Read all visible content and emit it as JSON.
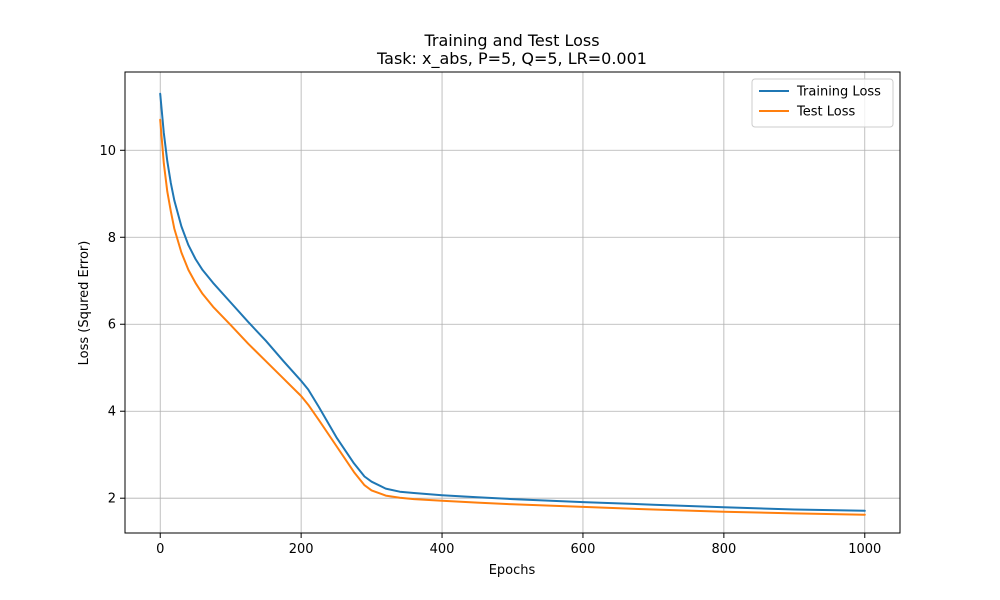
{
  "chart_data": {
    "type": "line",
    "title": "Training and Test Loss",
    "subtitle": "Task: x_abs, P=5, Q=5, LR=0.001",
    "xlabel": "Epochs",
    "ylabel": "Loss (Squred Error)",
    "xlim": [
      -50,
      1050
    ],
    "ylim": [
      1.2,
      11.8
    ],
    "x_ticks": [
      0,
      200,
      400,
      600,
      800,
      1000
    ],
    "y_ticks": [
      2,
      4,
      6,
      8,
      10
    ],
    "grid": true,
    "legend_position": "top-right",
    "series": [
      {
        "name": "Training Loss",
        "color": "#1f77b4",
        "points": [
          [
            0,
            11.3
          ],
          [
            5,
            10.4
          ],
          [
            10,
            9.75
          ],
          [
            15,
            9.25
          ],
          [
            20,
            8.85
          ],
          [
            30,
            8.25
          ],
          [
            40,
            7.82
          ],
          [
            50,
            7.5
          ],
          [
            60,
            7.25
          ],
          [
            75,
            6.95
          ],
          [
            100,
            6.5
          ],
          [
            125,
            6.05
          ],
          [
            150,
            5.62
          ],
          [
            175,
            5.15
          ],
          [
            200,
            4.7
          ],
          [
            210,
            4.5
          ],
          [
            225,
            4.1
          ],
          [
            250,
            3.4
          ],
          [
            275,
            2.8
          ],
          [
            290,
            2.5
          ],
          [
            300,
            2.38
          ],
          [
            320,
            2.22
          ],
          [
            340,
            2.15
          ],
          [
            360,
            2.12
          ],
          [
            400,
            2.07
          ],
          [
            450,
            2.02
          ],
          [
            500,
            1.98
          ],
          [
            600,
            1.91
          ],
          [
            700,
            1.85
          ],
          [
            800,
            1.79
          ],
          [
            900,
            1.74
          ],
          [
            1000,
            1.71
          ]
        ]
      },
      {
        "name": "Test Loss",
        "color": "#ff7f0e",
        "points": [
          [
            0,
            10.7
          ],
          [
            5,
            9.7
          ],
          [
            10,
            9.05
          ],
          [
            15,
            8.6
          ],
          [
            20,
            8.2
          ],
          [
            30,
            7.65
          ],
          [
            40,
            7.25
          ],
          [
            50,
            6.95
          ],
          [
            60,
            6.7
          ],
          [
            75,
            6.4
          ],
          [
            100,
            5.98
          ],
          [
            125,
            5.55
          ],
          [
            150,
            5.15
          ],
          [
            175,
            4.75
          ],
          [
            200,
            4.35
          ],
          [
            210,
            4.15
          ],
          [
            225,
            3.8
          ],
          [
            250,
            3.2
          ],
          [
            275,
            2.6
          ],
          [
            290,
            2.3
          ],
          [
            300,
            2.18
          ],
          [
            320,
            2.06
          ],
          [
            340,
            2.01
          ],
          [
            360,
            1.98
          ],
          [
            400,
            1.94
          ],
          [
            450,
            1.9
          ],
          [
            500,
            1.86
          ],
          [
            600,
            1.8
          ],
          [
            700,
            1.74
          ],
          [
            800,
            1.69
          ],
          [
            900,
            1.65
          ],
          [
            1000,
            1.62
          ]
        ]
      }
    ]
  }
}
